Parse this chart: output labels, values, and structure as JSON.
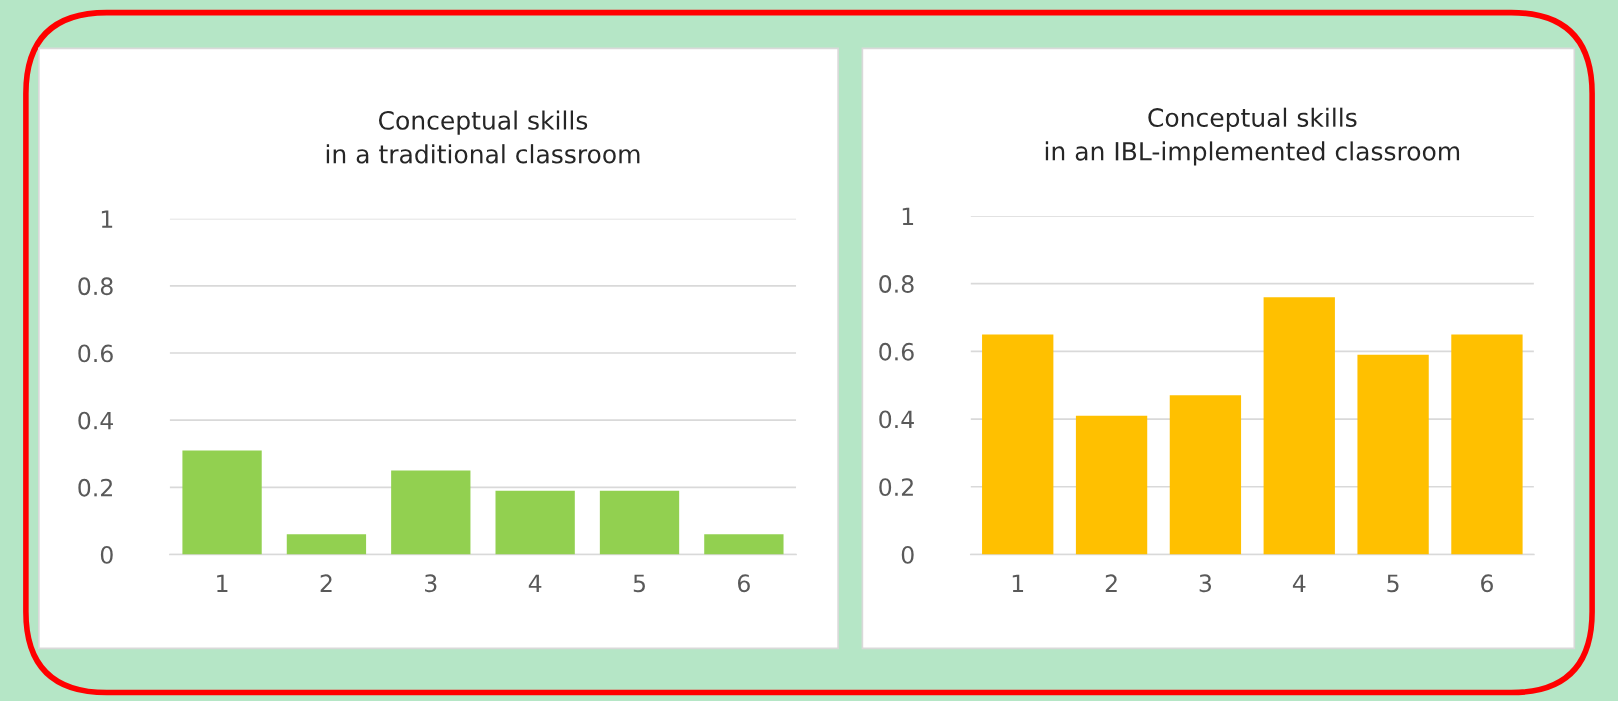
{
  "chart_data": [
    {
      "type": "bar",
      "title": "Conceptual skills\nin a traditional classroom",
      "categories": [
        "1",
        "2",
        "3",
        "4",
        "5",
        "6"
      ],
      "values": [
        0.31,
        0.06,
        0.25,
        0.19,
        0.19,
        0.06
      ],
      "color": "#92d050",
      "ylim": [
        0,
        1
      ],
      "yticks": [
        0,
        0.2,
        0.4,
        0.6,
        0.8,
        1
      ],
      "grid": "y"
    },
    {
      "type": "bar",
      "title": "Conceptual skills\nin an IBL-implemented classroom",
      "categories": [
        "1",
        "2",
        "3",
        "4",
        "5",
        "6"
      ],
      "values": [
        0.65,
        0.41,
        0.47,
        0.76,
        0.59,
        0.65
      ],
      "color": "#ffc000",
      "ylim": [
        0,
        1
      ],
      "yticks": [
        0,
        0.2,
        0.4,
        0.6,
        0.8,
        1
      ],
      "grid": "y"
    }
  ]
}
